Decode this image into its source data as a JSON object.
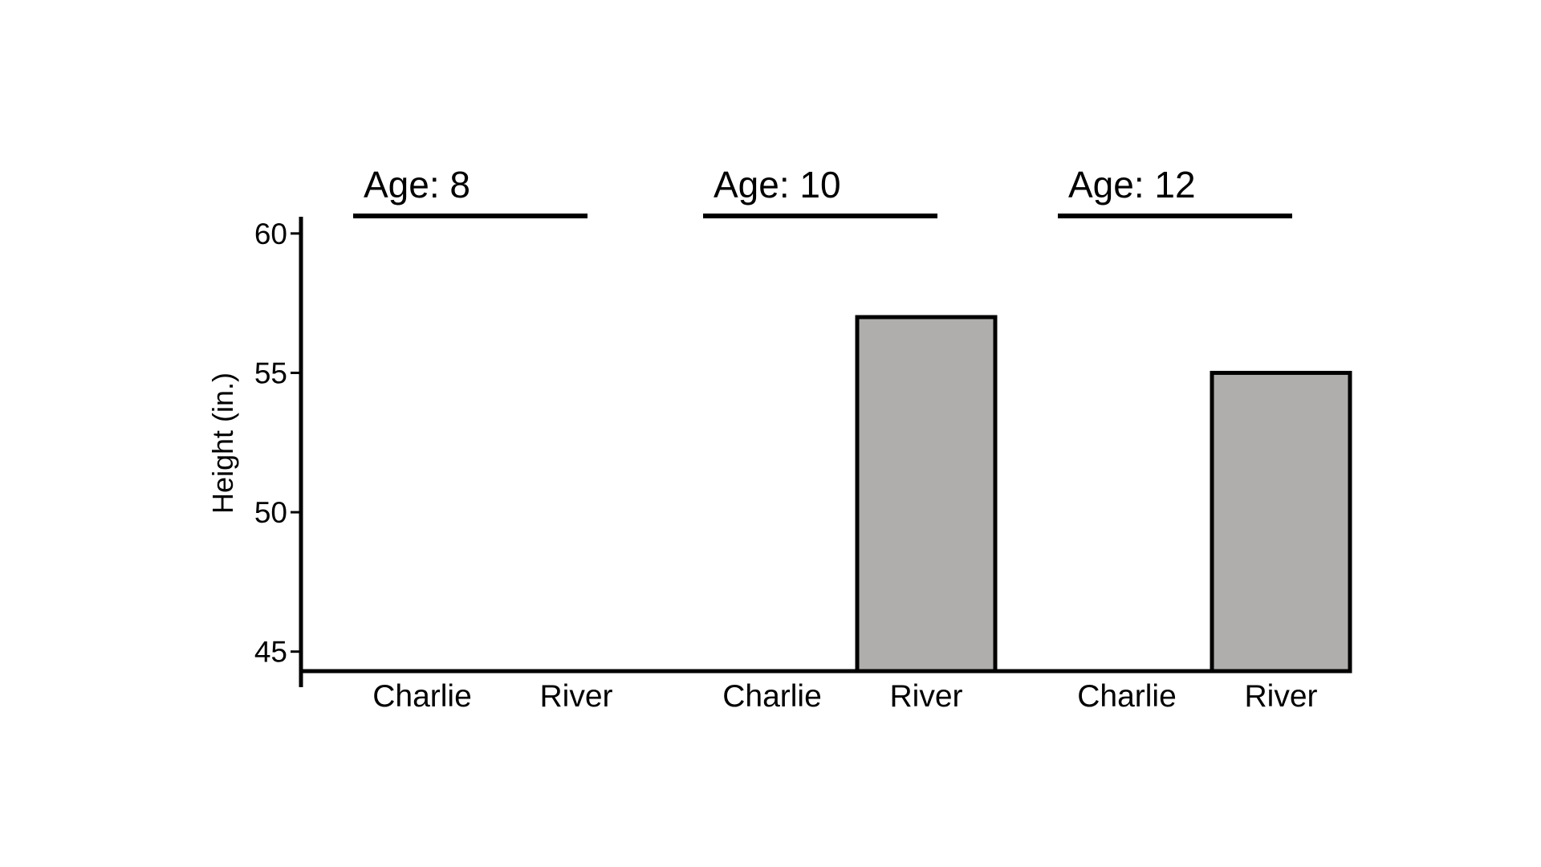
{
  "chart_data": {
    "type": "bar",
    "title": "",
    "xlabel": "",
    "ylabel": "Height (in.)",
    "ylim": [
      44.3,
      60.6
    ],
    "yticks": [
      60,
      55,
      50,
      45
    ],
    "ytick_labels": [
      "60",
      "55",
      "50",
      "45"
    ],
    "grid": false,
    "legend": "none",
    "bar_color": "#b0aeac",
    "groups": [
      {
        "label": "Age: 8",
        "categories": [
          "Charlie",
          "River"
        ],
        "values": [
          null,
          null
        ]
      },
      {
        "label": "Age: 10",
        "categories": [
          "Charlie",
          "River"
        ],
        "values": [
          null,
          57
        ]
      },
      {
        "label": "Age: 12",
        "categories": [
          "Charlie",
          "River"
        ],
        "values": [
          null,
          55
        ]
      }
    ]
  }
}
